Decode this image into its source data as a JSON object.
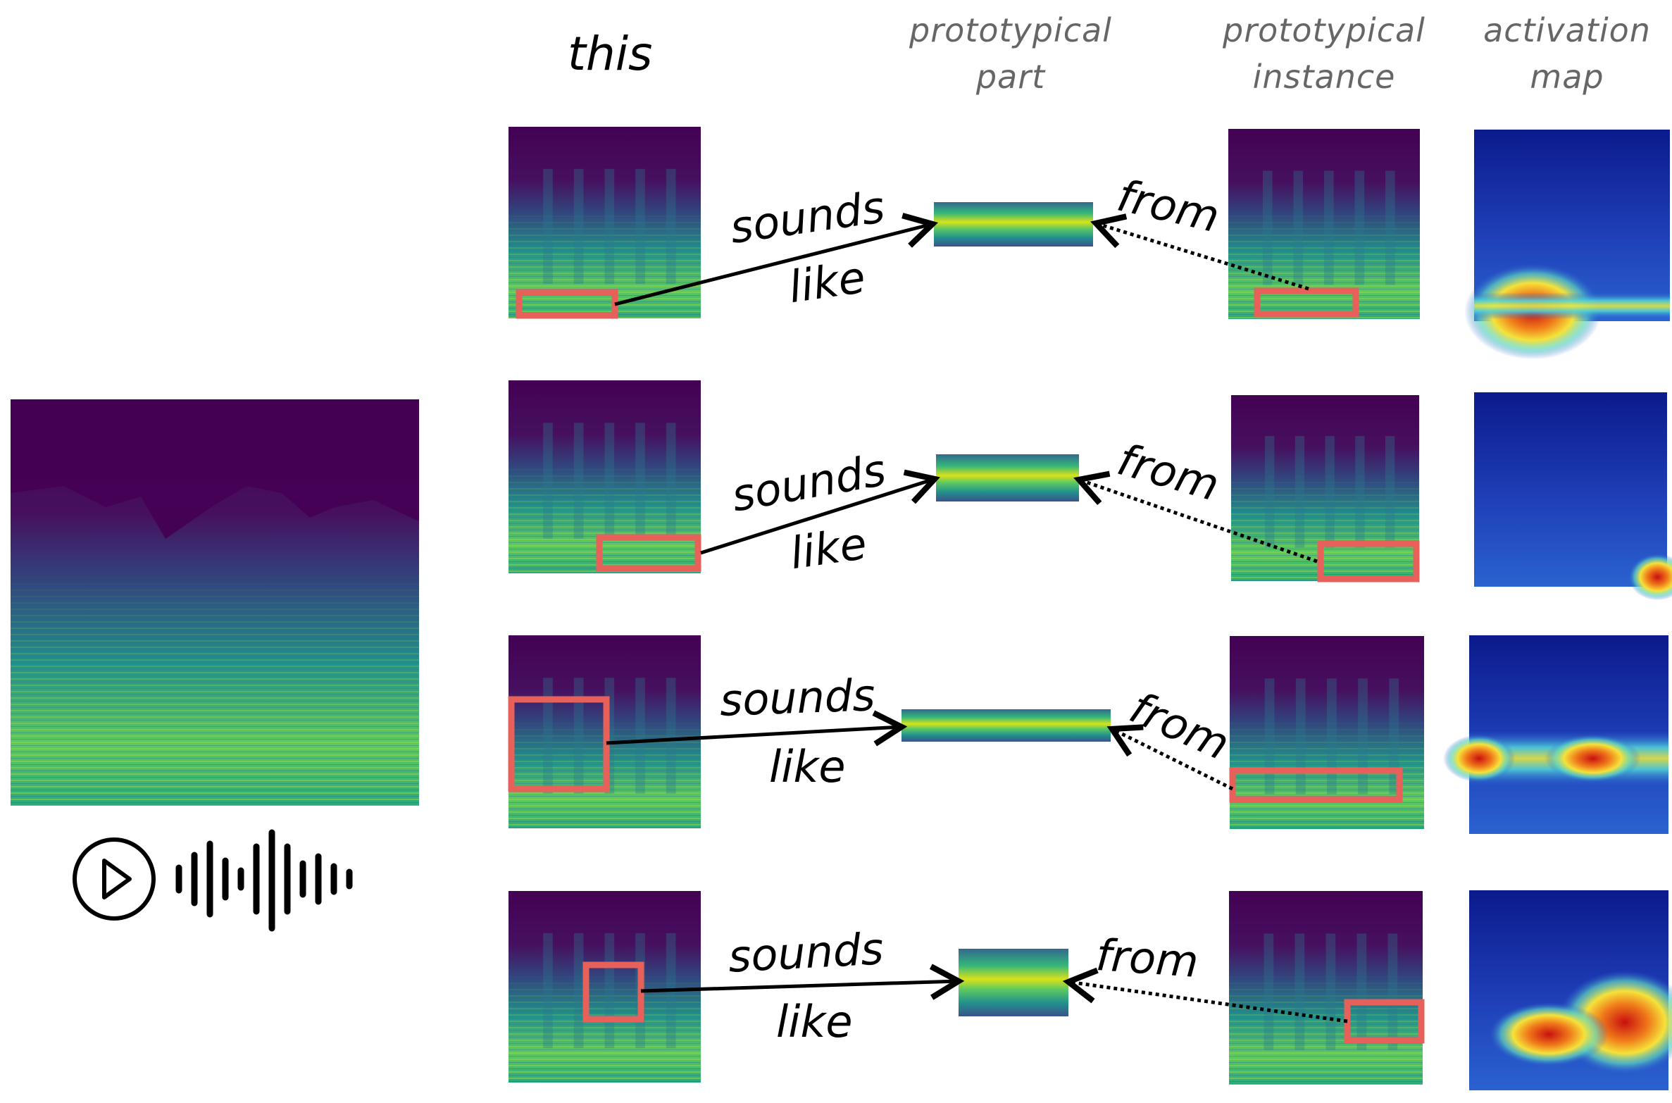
{
  "headers": {
    "this": "this",
    "prototypical_part": [
      "prototypical",
      "part"
    ],
    "prototypical_instance": [
      "prototypical",
      "instance"
    ],
    "activation_map": [
      "activation",
      "map"
    ]
  },
  "rows": [
    {
      "sounds": "sounds",
      "like": "like",
      "from": "from"
    },
    {
      "sounds": "sounds",
      "like": "like",
      "from": "from"
    },
    {
      "sounds": "sounds",
      "like": "like",
      "from": "from"
    },
    {
      "sounds": "sounds",
      "like": "like",
      "from": "from"
    }
  ],
  "icons": [
    "play-icon",
    "waveform-icon"
  ],
  "colors": {
    "spectrogram_dark": "#440154",
    "spectrogram_mid": "#21918c",
    "spectrogram_bright": "#fde725",
    "highlight_box": "#e8605a",
    "heat_cold": "#1a2ea8",
    "heat_hot": "#d7281b"
  }
}
